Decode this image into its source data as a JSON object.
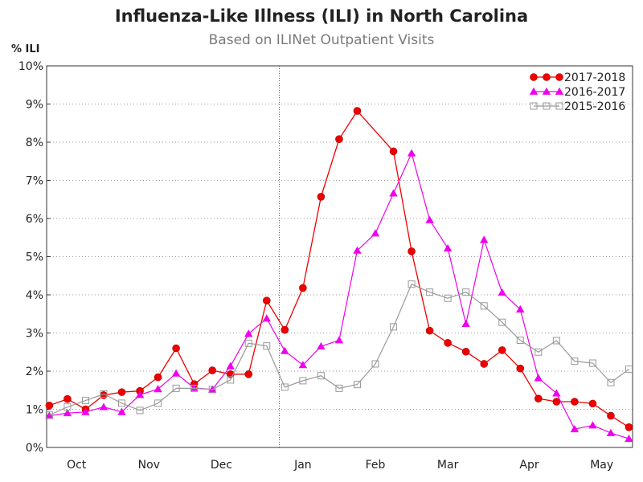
{
  "chart_data": {
    "type": "line",
    "title": "Influenza-Like Illness (ILI) in North Carolina",
    "subtitle": "Based on ILINet Outpatient Visits",
    "ylabel": "% ILI",
    "ylim": [
      0,
      10
    ],
    "y_ticks": [
      "0%",
      "1%",
      "2%",
      "3%",
      "4%",
      "5%",
      "6%",
      "7%",
      "8%",
      "9%",
      "10%"
    ],
    "x_ticks": [
      {
        "label": "Oct",
        "week": 1.5
      },
      {
        "label": "Nov",
        "week": 5.5
      },
      {
        "label": "Dec",
        "week": 9.5
      },
      {
        "label": "Jan",
        "week": 14.0
      },
      {
        "label": "Feb",
        "week": 18.0
      },
      {
        "label": "Mar",
        "week": 22.0
      },
      {
        "label": "Apr",
        "week": 26.5
      },
      {
        "label": "May",
        "week": 30.5
      }
    ],
    "x_range": [
      -0.15,
      32.2
    ],
    "year_divider_week": 12.7,
    "grid": true,
    "legend_position": "top-right",
    "series": [
      {
        "name": "2017-2018",
        "color": "#ee0000",
        "marker": "circle",
        "values": [
          1.1,
          1.27,
          1.0,
          1.37,
          1.45,
          1.48,
          1.84,
          2.6,
          1.66,
          2.02,
          1.92,
          1.92,
          3.85,
          3.08,
          4.18,
          6.57,
          8.08,
          8.82,
          null,
          7.76,
          5.14,
          3.06,
          2.74,
          2.51,
          2.19,
          2.55,
          2.07,
          1.28,
          1.2,
          1.2,
          1.15,
          0.83,
          0.53
        ]
      },
      {
        "name": "2016-2017",
        "color": "#ee00ee",
        "marker": "triangle",
        "values": [
          0.83,
          0.9,
          0.93,
          1.06,
          0.93,
          1.38,
          1.53,
          1.94,
          1.56,
          1.52,
          2.13,
          2.98,
          3.38,
          2.53,
          2.16,
          2.65,
          2.81,
          5.16,
          5.61,
          6.66,
          7.71,
          5.96,
          5.22,
          3.24,
          5.44,
          4.06,
          3.62,
          1.82,
          1.42,
          0.48,
          0.58,
          0.38,
          0.23
        ]
      },
      {
        "name": "2015-2016",
        "color": "#999999",
        "marker": "square",
        "values": [
          0.85,
          1.06,
          1.23,
          1.4,
          1.16,
          0.97,
          1.16,
          1.55,
          1.55,
          1.52,
          1.77,
          2.73,
          2.66,
          1.58,
          1.75,
          1.88,
          1.55,
          1.65,
          2.19,
          3.16,
          4.28,
          4.07,
          3.91,
          4.07,
          3.71,
          3.28,
          2.81,
          2.5,
          2.8,
          2.26,
          2.21,
          1.7,
          2.05
        ]
      }
    ]
  }
}
